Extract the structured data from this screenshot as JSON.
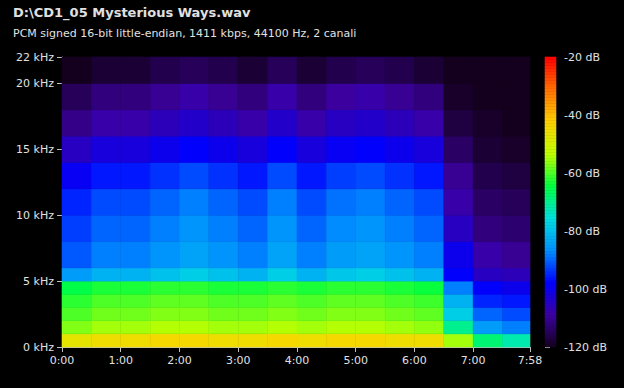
{
  "chart_data": {
    "type": "heatmap",
    "title": "D:\\CD1_05 Mysterious Ways.wav",
    "subtitle": "PCM signed 16-bit little-endian, 1411 kbps, 44100 Hz, 2 canali",
    "x_bins": [
      0,
      30,
      60,
      90,
      120,
      150,
      180,
      210,
      240,
      270,
      300,
      330,
      360,
      390,
      420,
      450,
      478
    ],
    "y_bins": [
      0,
      1,
      2,
      3,
      4,
      5,
      6,
      8,
      10,
      12,
      14,
      16,
      18,
      20,
      22
    ],
    "cells": [
      [
        -47,
        -45,
        -45,
        -44,
        -44,
        -45,
        -45,
        -44,
        -45,
        -44,
        -44,
        -45,
        -45,
        -55,
        -68,
        -72
      ],
      [
        -57,
        -55,
        -55,
        -54,
        -54,
        -55,
        -55,
        -54,
        -55,
        -54,
        -54,
        -55,
        -56,
        -70,
        -85,
        -88
      ],
      [
        -60,
        -58,
        -58,
        -57,
        -57,
        -58,
        -58,
        -57,
        -58,
        -57,
        -57,
        -58,
        -59,
        -78,
        -90,
        -92
      ],
      [
        -62,
        -60,
        -60,
        -59,
        -59,
        -60,
        -60,
        -59,
        -60,
        -59,
        -59,
        -60,
        -61,
        -82,
        -95,
        -96
      ],
      [
        -65,
        -63,
        -63,
        -62,
        -62,
        -63,
        -63,
        -62,
        -63,
        -62,
        -62,
        -63,
        -64,
        -88,
        -98,
        -100
      ],
      [
        -85,
        -82,
        -82,
        -80,
        -78,
        -80,
        -82,
        -78,
        -82,
        -79,
        -78,
        -80,
        -82,
        -98,
        -105,
        -106
      ],
      [
        -91,
        -88,
        -88,
        -86,
        -84,
        -86,
        -88,
        -84,
        -88,
        -85,
        -84,
        -86,
        -88,
        -100,
        -108,
        -110
      ],
      [
        -93,
        -90,
        -90,
        -88,
        -86,
        -88,
        -90,
        -86,
        -90,
        -87,
        -86,
        -88,
        -90,
        -105,
        -112,
        -113
      ],
      [
        -95,
        -92,
        -92,
        -90,
        -88,
        -90,
        -92,
        -88,
        -92,
        -89,
        -88,
        -90,
        -92,
        -108,
        -114,
        -115
      ],
      [
        -99,
        -96,
        -96,
        -94,
        -92,
        -94,
        -96,
        -92,
        -96,
        -93,
        -92,
        -94,
        -96,
        -110,
        -116,
        -117
      ],
      [
        -105,
        -102,
        -102,
        -100,
        -98,
        -100,
        -102,
        -98,
        -102,
        -99,
        -98,
        -100,
        -102,
        -114,
        -118,
        -119
      ],
      [
        -111,
        -108,
        -108,
        -106,
        -104,
        -106,
        -108,
        -104,
        -108,
        -105,
        -104,
        -106,
        -108,
        -117,
        -119,
        -120
      ],
      [
        -115,
        -112,
        -112,
        -110,
        -108,
        -110,
        -112,
        -108,
        -112,
        -109,
        -108,
        -110,
        -112,
        -119,
        -120,
        -120
      ],
      [
        -120,
        -118,
        -118,
        -116,
        -115,
        -116,
        -118,
        -115,
        -118,
        -116,
        -115,
        -116,
        -118,
        -120,
        -120,
        -120
      ]
    ],
    "xlim": [
      0,
      478
    ],
    "xticks": [
      {
        "value": 0,
        "label": "0:00"
      },
      {
        "value": 60,
        "label": "1:00"
      },
      {
        "value": 120,
        "label": "2:00"
      },
      {
        "value": 180,
        "label": "3:00"
      },
      {
        "value": 240,
        "label": "4:00"
      },
      {
        "value": 300,
        "label": "5:00"
      },
      {
        "value": 360,
        "label": "6:00"
      },
      {
        "value": 420,
        "label": "7:00"
      },
      {
        "value": 478,
        "label": "7:58"
      }
    ],
    "ylim": [
      0,
      22
    ],
    "yticks": [
      {
        "value": 0,
        "label": "0 kHz"
      },
      {
        "value": 5,
        "label": "5 kHz"
      },
      {
        "value": 10,
        "label": "10 kHz"
      },
      {
        "value": 15,
        "label": "15 kHz"
      },
      {
        "value": 20,
        "label": "20 kHz"
      },
      {
        "value": 22,
        "label": "22 kHz"
      }
    ],
    "colorbar": {
      "range": [
        -120,
        -20
      ],
      "ticks": [
        {
          "value": -20,
          "label": "-20 dB"
        },
        {
          "value": -40,
          "label": "-40 dB"
        },
        {
          "value": -60,
          "label": "-60 dB"
        },
        {
          "value": -80,
          "label": "-80 dB"
        },
        {
          "value": -100,
          "label": "-100 dB"
        },
        {
          "value": -120,
          "label": "-120 dB"
        }
      ]
    }
  }
}
